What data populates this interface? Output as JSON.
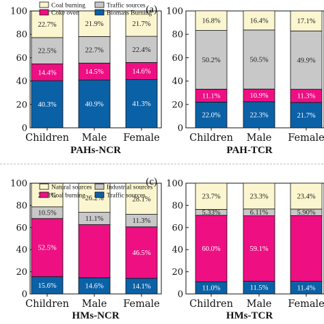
{
  "colors": {
    "coal": "#fbf6cf",
    "coke": "#ee0f83",
    "traffic_gray": "#c8c8c8",
    "biomass": "#0b61a6",
    "natural": "#fbf6cf",
    "coal_hm": "#ee0f83",
    "industrial": "#c8c8c8",
    "traffic_hm": "#0b61a6"
  },
  "chart_data": [
    {
      "type": "bar",
      "stacked": true,
      "title": "PAHs-NCR",
      "panel_label": "(a)",
      "categories": [
        "Children",
        "Male",
        "Female"
      ],
      "ylim": [
        0,
        100
      ],
      "yticks": [
        0,
        20,
        40,
        60,
        80,
        100
      ],
      "legend": [
        "Coal burning",
        "Traffic sources",
        "Coke oven",
        "Biomass Burning"
      ],
      "series": [
        {
          "name": "Biomass Burning",
          "color": "#0b61a6",
          "values": [
            40.3,
            40.9,
            41.3
          ],
          "labels": [
            "40.3%",
            "40.9%",
            "41.3%"
          ]
        },
        {
          "name": "Coke oven",
          "color": "#ee0f83",
          "values": [
            14.4,
            14.5,
            14.6
          ],
          "labels": [
            "14.4%",
            "14.5%",
            "14.6%"
          ]
        },
        {
          "name": "Traffic sources",
          "color": "#c8c8c8",
          "values": [
            22.5,
            22.7,
            22.4
          ],
          "labels": [
            "22.5%",
            "22.7%",
            "22.4%"
          ]
        },
        {
          "name": "Coal burning",
          "color": "#fbf6cf",
          "values": [
            22.7,
            21.9,
            21.7
          ],
          "labels": [
            "22.7%",
            "21.9%",
            "21.7%"
          ]
        }
      ]
    },
    {
      "type": "bar",
      "stacked": true,
      "title": "PAH-TCR",
      "panel_label": "",
      "categories": [
        "Children",
        "Male",
        "Female"
      ],
      "ylim": [
        0,
        100
      ],
      "yticks": [
        0,
        20,
        40,
        60,
        80,
        100
      ],
      "legend": [],
      "series": [
        {
          "name": "Biomass Burning",
          "color": "#0b61a6",
          "values": [
            22.0,
            22.3,
            21.7
          ],
          "labels": [
            "22.0%",
            "22.3%",
            "21.7%"
          ]
        },
        {
          "name": "Coke oven",
          "color": "#ee0f83",
          "values": [
            11.1,
            10.9,
            11.3
          ],
          "labels": [
            "11.1%",
            "10.9%",
            "11.3%"
          ]
        },
        {
          "name": "Traffic sources",
          "color": "#c8c8c8",
          "values": [
            50.2,
            50.5,
            49.9
          ],
          "labels": [
            "50.2%",
            "50.5%",
            "49.9%"
          ]
        },
        {
          "name": "Coal burning",
          "color": "#fbf6cf",
          "values": [
            16.8,
            16.4,
            17.1
          ],
          "labels": [
            "16.8%",
            "16.4%",
            "17.1%"
          ]
        }
      ]
    },
    {
      "type": "bar",
      "stacked": true,
      "title": "HMs-NCR",
      "panel_label": "(c)",
      "categories": [
        "Children",
        "Male",
        "Female"
      ],
      "ylim": [
        0,
        100
      ],
      "yticks": [
        0,
        20,
        40,
        60,
        80,
        100
      ],
      "legend": [
        "Natural sources",
        "Industrial sources",
        "Coal burning",
        "Traffic sources"
      ],
      "series": [
        {
          "name": "Traffic sources",
          "color": "#0b61a6",
          "values": [
            15.6,
            14.6,
            14.1
          ],
          "labels": [
            "15.6%",
            "14.6%",
            "14.1%"
          ]
        },
        {
          "name": "Coal burning",
          "color": "#ee0f83",
          "values": [
            52.5,
            48.0,
            46.5
          ],
          "labels": [
            "52.5%",
            "",
            "46.5%"
          ]
        },
        {
          "name": "Industrial sources",
          "color": "#c8c8c8",
          "values": [
            10.5,
            11.1,
            11.3
          ],
          "labels": [
            "10.5%",
            "11.1%",
            "11.3%"
          ]
        },
        {
          "name": "Natural sources",
          "color": "#fbf6cf",
          "values": [
            21.3,
            26.2,
            28.1
          ],
          "labels": [
            "21.3%",
            "26.2%",
            "28.1%"
          ]
        }
      ]
    },
    {
      "type": "bar",
      "stacked": true,
      "title": "HMs-TCR",
      "panel_label": "",
      "categories": [
        "Children",
        "Male",
        "Female"
      ],
      "ylim": [
        0,
        100
      ],
      "yticks": [
        0,
        20,
        40,
        60,
        80,
        100
      ],
      "legend": [],
      "series": [
        {
          "name": "Traffic sources",
          "color": "#0b61a6",
          "values": [
            11.0,
            11.5,
            11.4
          ],
          "labels": [
            "11.0%",
            "11.5%",
            "11.4%"
          ]
        },
        {
          "name": "Coal burning",
          "color": "#ee0f83",
          "values": [
            60.0,
            59.1,
            59.3
          ],
          "labels": [
            "60.0%",
            "59.1%",
            ""
          ]
        },
        {
          "name": "Industrial sources",
          "color": "#c8c8c8",
          "values": [
            5.33,
            6.11,
            5.9
          ],
          "labels": [
            "5.33%",
            "6.11%",
            "5.90%"
          ]
        },
        {
          "name": "Natural sources",
          "color": "#fbf6cf",
          "values": [
            23.7,
            23.3,
            23.4
          ],
          "labels": [
            "23.7%",
            "23.3%",
            "23.4%"
          ]
        }
      ]
    }
  ]
}
